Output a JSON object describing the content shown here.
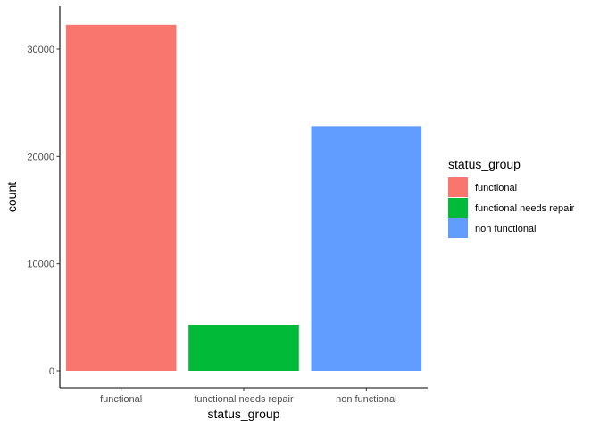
{
  "chart_data": {
    "type": "bar",
    "categories": [
      "functional",
      "functional needs repair",
      "non functional"
    ],
    "values": [
      32259,
      4317,
      22824
    ],
    "colors": [
      "#F8766D",
      "#00BA38",
      "#619CFF"
    ],
    "xlabel": "status_group",
    "ylabel": "count",
    "ylim": [
      0,
      33000
    ],
    "yticks": [
      0,
      10000,
      20000,
      30000
    ],
    "ytick_labels": [
      "0",
      "10000",
      "20000",
      "30000"
    ],
    "grid": false,
    "legend": {
      "title": "status_group",
      "placement": "right",
      "entries": [
        "functional",
        "functional needs repair",
        "non functional"
      ]
    }
  }
}
